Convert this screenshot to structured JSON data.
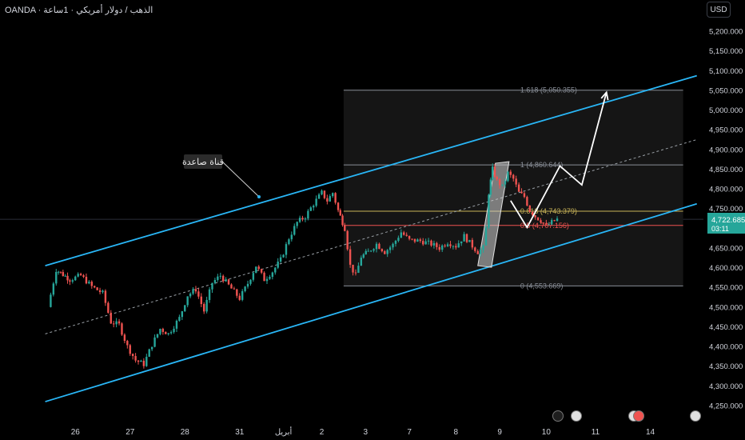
{
  "header": {
    "symbol_text": "OANDA · الذهب / دولار أمريكي · 1ساعة",
    "currency_button": "USD"
  },
  "price_badge": {
    "price": "4,722.685",
    "countdown": "03:11",
    "color": "#26a69a"
  },
  "annotation": {
    "text": "قناة صاعدة"
  },
  "colors": {
    "up": "#26a69a",
    "down": "#ef5350",
    "channel": "#29b6f6",
    "fib_line": "#8a8f98",
    "fib_618": "#c9b458",
    "fib_05": "#ef5350",
    "projection": "#ffffff",
    "box": "#d9d9d9"
  },
  "chart_data": {
    "type": "candlestick",
    "y_axis": {
      "range": [
        4220,
        5230
      ],
      "ticks": [
        "5,200.000",
        "5,150.000",
        "5,100.000",
        "5,050.000",
        "5,000.000",
        "4,950.000",
        "4,900.000",
        "4,850.000",
        "4,800.000",
        "4,750.000",
        "4,700.000",
        "4,650.000",
        "4,600.000",
        "4,550.000",
        "4,500.000",
        "4,450.000",
        "4,400.000",
        "4,350.000",
        "4,300.000",
        "4,250.000"
      ],
      "tick_values": [
        5200,
        5150,
        5100,
        5050,
        5000,
        4950,
        4900,
        4850,
        4800,
        4750,
        4700,
        4650,
        4600,
        4550,
        4500,
        4450,
        4400,
        4350,
        4300,
        4250
      ]
    },
    "x_axis": {
      "labels": [
        "26",
        "27",
        "28",
        "31",
        "أبريل",
        "2",
        "3",
        "7",
        "8",
        "9",
        "10",
        "11",
        "14"
      ],
      "label_positions": [
        0.5,
        1.5,
        2.5,
        3.5,
        4.3,
        5.0,
        5.8,
        6.6,
        7.45,
        8.25,
        9.1,
        10.0,
        11.0
      ]
    },
    "fib_levels": [
      {
        "label": "1.618 (5,050.355)",
        "value": 5050.355,
        "color_key": "fib_line"
      },
      {
        "label": "1 (4,860.644)",
        "value": 4860.644,
        "color_key": "fib_line"
      },
      {
        "label": "0.618 (4,743.379)",
        "value": 4743.379,
        "color_key": "fib_618"
      },
      {
        "label": "0.5 (4,707.156)",
        "value": 4707.156,
        "color_key": "fib_05"
      },
      {
        "label": "0 (4,553.669)",
        "value": 4553.669,
        "color_key": "fib_line"
      }
    ],
    "channel": {
      "upper": [
        [
          -0.05,
          4605
        ],
        [
          11.85,
          5087
        ]
      ],
      "lower": [
        [
          -0.05,
          4260
        ],
        [
          11.85,
          4762
        ]
      ],
      "mid": [
        [
          -0.05,
          4432
        ],
        [
          11.85,
          4925
        ]
      ]
    },
    "projection_path": [
      [
        8.45,
        4770
      ],
      [
        8.75,
        4702
      ],
      [
        9.35,
        4858
      ],
      [
        9.75,
        4810
      ],
      [
        10.2,
        5045
      ]
    ],
    "highlight_box": {
      "x0": 7.85,
      "x1": 8.1,
      "y_low": 4605,
      "y_high": 4865
    },
    "anchor_points": [
      [
        0.0,
        4500
      ],
      [
        0.15,
        4595
      ],
      [
        0.4,
        4570
      ],
      [
        0.6,
        4580
      ],
      [
        0.8,
        4552
      ],
      [
        1.0,
        4535
      ],
      [
        1.15,
        4462
      ],
      [
        1.3,
        4455
      ],
      [
        1.45,
        4400
      ],
      [
        1.6,
        4365
      ],
      [
        1.75,
        4355
      ],
      [
        1.9,
        4405
      ],
      [
        2.05,
        4445
      ],
      [
        2.2,
        4432
      ],
      [
        2.4,
        4472
      ],
      [
        2.55,
        4530
      ],
      [
        2.7,
        4545
      ],
      [
        2.85,
        4490
      ],
      [
        3.0,
        4562
      ],
      [
        3.15,
        4580
      ],
      [
        3.3,
        4555
      ],
      [
        3.5,
        4522
      ],
      [
        3.65,
        4560
      ],
      [
        3.8,
        4605
      ],
      [
        3.95,
        4570
      ],
      [
        4.1,
        4590
      ],
      [
        4.25,
        4620
      ],
      [
        4.4,
        4675
      ],
      [
        4.55,
        4715
      ],
      [
        4.7,
        4730
      ],
      [
        4.85,
        4762
      ],
      [
        5.0,
        4790
      ],
      [
        5.1,
        4770
      ],
      [
        5.2,
        4790
      ],
      [
        5.3,
        4745
      ],
      [
        5.42,
        4700
      ],
      [
        5.52,
        4605
      ],
      [
        5.62,
        4580
      ],
      [
        5.72,
        4628
      ],
      [
        5.85,
        4640
      ],
      [
        6.0,
        4660
      ],
      [
        6.15,
        4640
      ],
      [
        6.3,
        4658
      ],
      [
        6.45,
        4690
      ],
      [
        6.6,
        4670
      ],
      [
        6.8,
        4668
      ],
      [
        7.0,
        4660
      ],
      [
        7.15,
        4650
      ],
      [
        7.3,
        4665
      ],
      [
        7.45,
        4655
      ],
      [
        7.6,
        4680
      ],
      [
        7.75,
        4655
      ],
      [
        7.85,
        4640
      ],
      [
        7.95,
        4650
      ],
      [
        8.0,
        4700
      ],
      [
        8.05,
        4790
      ],
      [
        8.12,
        4850
      ],
      [
        8.2,
        4820
      ],
      [
        8.3,
        4805
      ],
      [
        8.4,
        4840
      ],
      [
        8.5,
        4825
      ],
      [
        8.6,
        4790
      ],
      [
        8.7,
        4780
      ],
      [
        8.8,
        4745
      ],
      [
        8.9,
        4730
      ],
      [
        9.0,
        4720
      ],
      [
        9.1,
        4705
      ],
      [
        9.2,
        4715
      ],
      [
        9.3,
        4722.685
      ]
    ]
  }
}
